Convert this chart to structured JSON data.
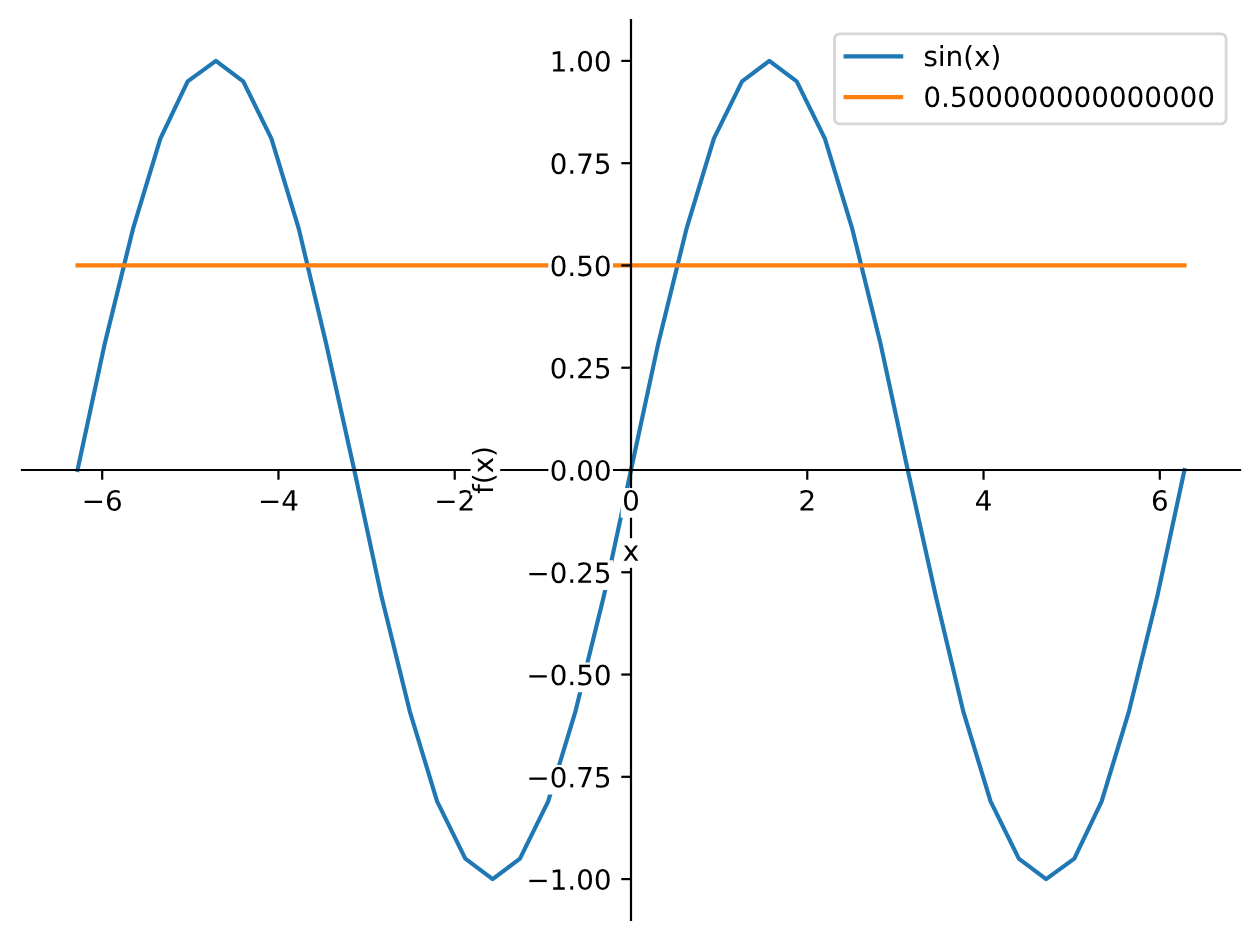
{
  "chart_data": {
    "type": "line",
    "xlabel": "x",
    "ylabel": "f(x)",
    "xlim": [
      -6.91,
      6.91
    ],
    "ylim": [
      -1.1,
      1.1
    ],
    "xticks": [
      {
        "value": -6,
        "label": "−6"
      },
      {
        "value": -4,
        "label": "−4"
      },
      {
        "value": -2,
        "label": "−2"
      },
      0,
      2,
      4,
      6
    ],
    "yticks": [
      {
        "value": -1,
        "label": "−1.00"
      },
      {
        "value": -0.75,
        "label": "−0.75"
      },
      {
        "value": -0.5,
        "label": "−0.50"
      },
      {
        "value": -0.25,
        "label": "−0.25"
      },
      {
        "value": 0,
        "label": "0.00"
      },
      {
        "value": 0.25,
        "label": "0.25"
      },
      {
        "value": 0.5,
        "label": "0.50"
      },
      {
        "value": 0.75,
        "label": "0.75"
      },
      {
        "value": 1,
        "label": "1.00"
      }
    ],
    "x": [
      -6.28,
      -5.97,
      -5.65,
      -5.34,
      -5.03,
      -4.71,
      -4.4,
      -4.08,
      -3.77,
      -3.46,
      -3.14,
      -2.83,
      -2.51,
      -2.2,
      -1.88,
      -1.57,
      -1.26,
      -0.94,
      -0.63,
      -0.31,
      0,
      0.31,
      0.63,
      0.94,
      1.26,
      1.57,
      1.88,
      2.2,
      2.51,
      2.83,
      3.14,
      3.46,
      3.77,
      4.08,
      4.4,
      4.71,
      5.03,
      5.34,
      5.65,
      5.97,
      6.28
    ],
    "series": [
      {
        "name": "sin(x)",
        "color": "#1f77b4",
        "values": [
          0,
          0.31,
          0.59,
          0.81,
          0.95,
          1,
          0.95,
          0.81,
          0.59,
          0.31,
          0,
          -0.31,
          -0.59,
          -0.81,
          -0.95,
          -1,
          -0.95,
          -0.81,
          -0.59,
          -0.31,
          0,
          0.31,
          0.59,
          0.81,
          0.95,
          1,
          0.95,
          0.81,
          0.59,
          0.31,
          0,
          -0.31,
          -0.59,
          -0.81,
          -0.95,
          -1,
          -0.95,
          -0.81,
          -0.59,
          -0.31,
          0
        ]
      },
      {
        "name": "0.500000000000000",
        "color": "#ff7f0e",
        "x": [
          -6.28,
          6.28
        ],
        "values": [
          0.5,
          0.5
        ]
      }
    ],
    "legend": "top right",
    "grid": false,
    "marker": "none",
    "line_style": "solid"
  }
}
